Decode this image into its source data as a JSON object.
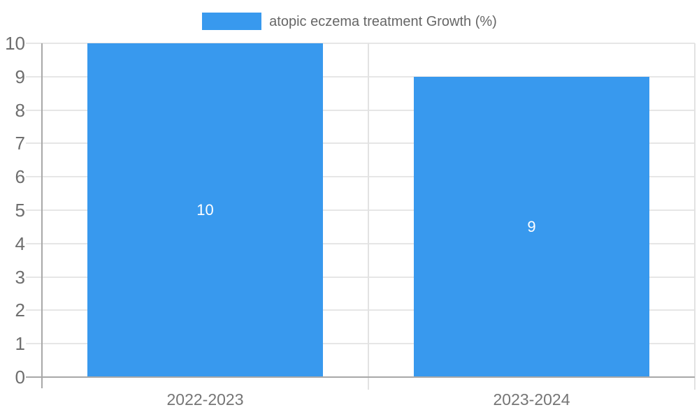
{
  "chart_data": {
    "type": "bar",
    "legend_entries": [
      "atopic eczema treatment Growth (%)"
    ],
    "legend_position": "top-center",
    "categories": [
      "2022-2023",
      "2023-2024"
    ],
    "values": [
      10,
      9
    ],
    "value_labels": [
      "10",
      "9"
    ],
    "ylim": [
      0,
      10
    ],
    "yticks": [
      0,
      1,
      2,
      3,
      4,
      5,
      6,
      7,
      8,
      9,
      10
    ],
    "grid": true,
    "bar_color": "#3899ee",
    "value_label_color": "#ffffff"
  },
  "colors": {
    "bar_fill": "#3899ee",
    "bar_value_text": "#ffffff",
    "legend_text": "#666666",
    "axis_line": "#a8a8a8",
    "gridline": "#e6e6e6",
    "category_divider": "#e2e2e2",
    "y_tick_label": "#6e6e6e",
    "x_tick_label": "#757575",
    "background": "#ffffff"
  }
}
